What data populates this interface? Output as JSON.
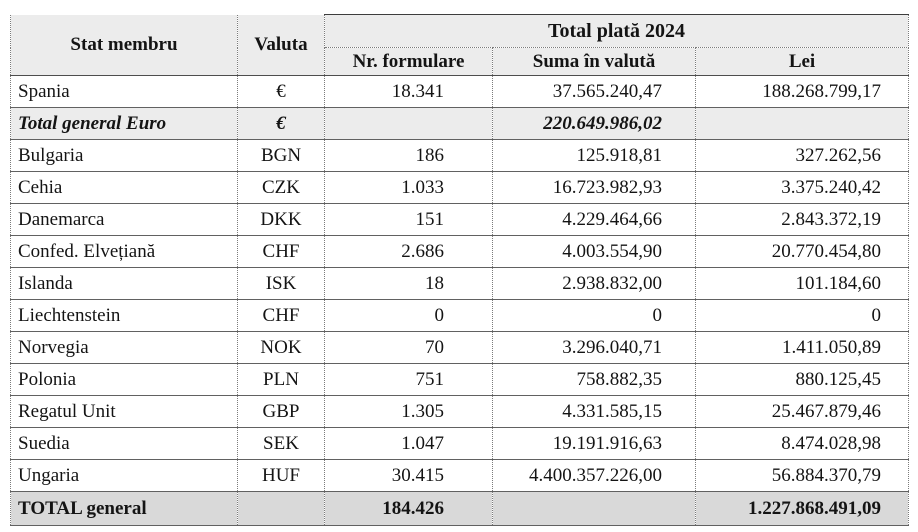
{
  "table": {
    "title_group": "Total plată 2024",
    "headers": {
      "stat_membru": "Stat membru",
      "valuta": "Valuta",
      "nr_formulare": "Nr. formulare",
      "suma_in_valuta": "Suma în valută",
      "lei": "Lei"
    },
    "colors": {
      "header_bg": "#ececec",
      "euro_total_row_bg": "#ececec",
      "grand_total_row_bg": "#d9d9d9",
      "border": "#616161",
      "text": "#141414"
    },
    "rows": [
      {
        "stat": "Spania",
        "valuta": "€",
        "nr_formulare": "18.341",
        "suma_in_valuta": "37.565.240,47",
        "lei": "188.268.799,17",
        "style": "normal"
      },
      {
        "stat": "Total general Euro",
        "valuta": "€",
        "nr_formulare": "",
        "suma_in_valuta": "220.649.986,02",
        "lei": "",
        "style": "euro_total"
      },
      {
        "stat": "Bulgaria",
        "valuta": "BGN",
        "nr_formulare": "186",
        "suma_in_valuta": "125.918,81",
        "lei": "327.262,56",
        "style": "normal"
      },
      {
        "stat": "Cehia",
        "valuta": "CZK",
        "nr_formulare": "1.033",
        "suma_in_valuta": "16.723.982,93",
        "lei": "3.375.240,42",
        "style": "normal"
      },
      {
        "stat": "Danemarca",
        "valuta": "DKK",
        "nr_formulare": "151",
        "suma_in_valuta": "4.229.464,66",
        "lei": "2.843.372,19",
        "style": "normal"
      },
      {
        "stat": "Confed. Elvețiană",
        "valuta": "CHF",
        "nr_formulare": "2.686",
        "suma_in_valuta": "4.003.554,90",
        "lei": "20.770.454,80",
        "style": "normal"
      },
      {
        "stat": "Islanda",
        "valuta": "ISK",
        "nr_formulare": "18",
        "suma_in_valuta": "2.938.832,00",
        "lei": "101.184,60",
        "style": "normal"
      },
      {
        "stat": "Liechtenstein",
        "valuta": "CHF",
        "nr_formulare": "0",
        "suma_in_valuta": "0",
        "lei": "0",
        "style": "normal"
      },
      {
        "stat": "Norvegia",
        "valuta": "NOK",
        "nr_formulare": "70",
        "suma_in_valuta": "3.296.040,71",
        "lei": "1.411.050,89",
        "style": "normal"
      },
      {
        "stat": "Polonia",
        "valuta": "PLN",
        "nr_formulare": "751",
        "suma_in_valuta": "758.882,35",
        "lei": "880.125,45",
        "style": "normal"
      },
      {
        "stat": "Regatul Unit",
        "valuta": "GBP",
        "nr_formulare": "1.305",
        "suma_in_valuta": "4.331.585,15",
        "lei": "25.467.879,46",
        "style": "normal"
      },
      {
        "stat": "Suedia",
        "valuta": "SEK",
        "nr_formulare": "1.047",
        "suma_in_valuta": "19.191.916,63",
        "lei": "8.474.028,98",
        "style": "normal"
      },
      {
        "stat": "Ungaria",
        "valuta": "HUF",
        "nr_formulare": "30.415",
        "suma_in_valuta": "4.400.357.226,00",
        "lei": "56.884.370,79",
        "style": "normal"
      },
      {
        "stat": "TOTAL general",
        "valuta": "",
        "nr_formulare": "184.426",
        "suma_in_valuta": "",
        "lei": "1.227.868.491,09",
        "style": "grand_total"
      }
    ]
  }
}
